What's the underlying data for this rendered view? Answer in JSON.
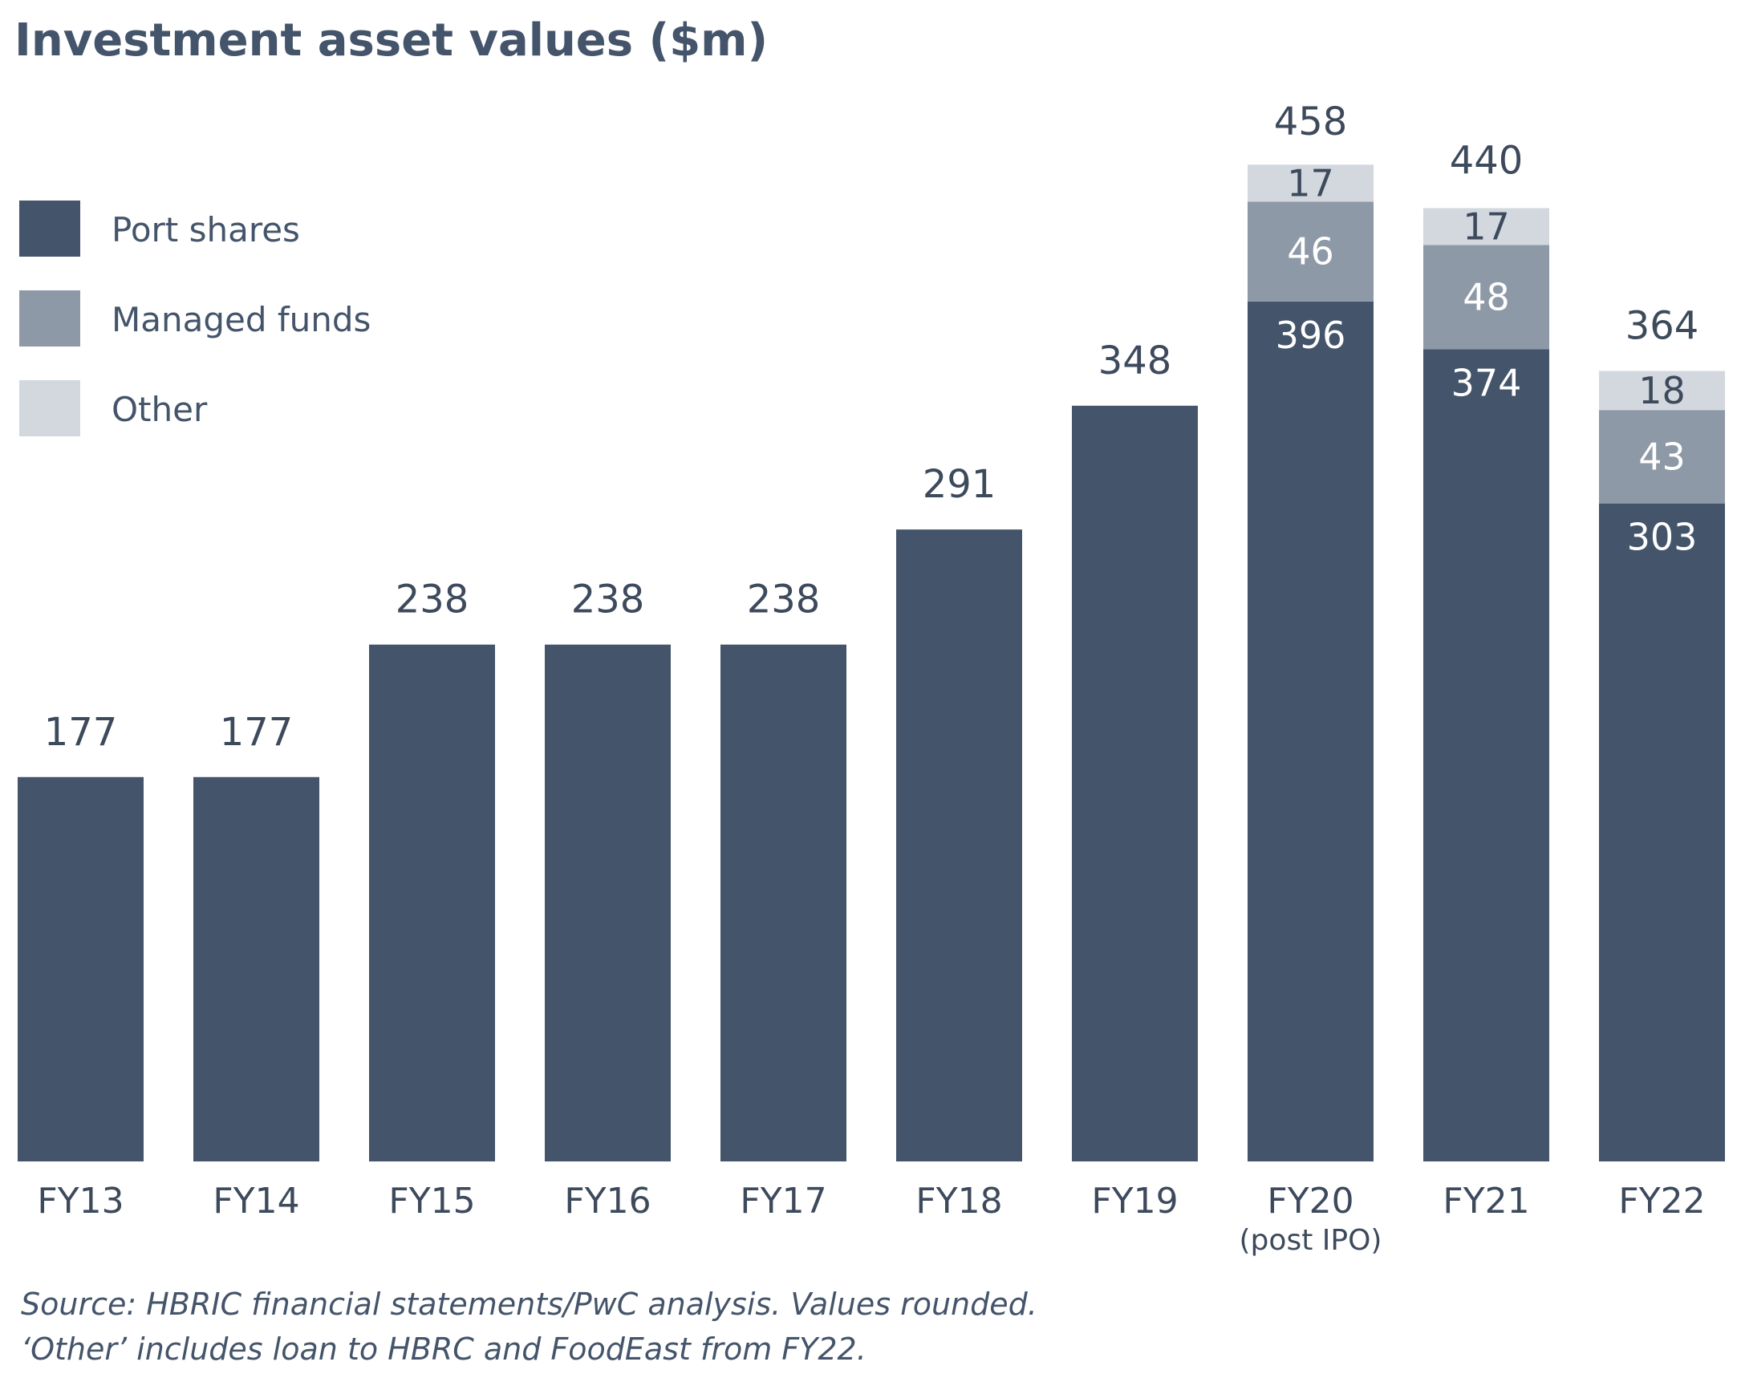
{
  "title": "Investment asset values ($m)",
  "legend": [
    {
      "label": "Port shares",
      "color": "#44546a"
    },
    {
      "label": "Managed funds",
      "color": "#8e99a7"
    },
    {
      "label": "Other",
      "color": "#d2d8de"
    }
  ],
  "footnotes": [
    "Source: HBRIC financial statements/PwC analysis. Values rounded.",
    "‘Other’ includes loan to HBRC and FoodEast from FY22."
  ],
  "chart_data": {
    "type": "bar",
    "stacked": true,
    "title": "Investment asset values ($m)",
    "categories": [
      "FY13",
      "FY14",
      "FY15",
      "FY16",
      "FY17",
      "FY18",
      "FY19",
      "FY20",
      "FY21",
      "FY22"
    ],
    "category_sublabels": [
      "",
      "",
      "",
      "",
      "",
      "",
      "",
      "(post IPO)",
      "",
      ""
    ],
    "series": [
      {
        "name": "Port shares",
        "color": "#44546a",
        "values": [
          177,
          177,
          238,
          238,
          238,
          291,
          348,
          396,
          374,
          303
        ]
      },
      {
        "name": "Managed funds",
        "color": "#8e99a7",
        "values": [
          null,
          null,
          null,
          null,
          null,
          null,
          null,
          46,
          48,
          43
        ]
      },
      {
        "name": "Other",
        "color": "#d2d8de",
        "values": [
          null,
          null,
          null,
          null,
          null,
          null,
          null,
          17,
          17,
          18
        ]
      }
    ],
    "totals": [
      177,
      177,
      238,
      238,
      238,
      291,
      348,
      458,
      440,
      364
    ],
    "ylim": [
      0,
      458
    ],
    "grid": false,
    "legend_position": "top-left"
  }
}
